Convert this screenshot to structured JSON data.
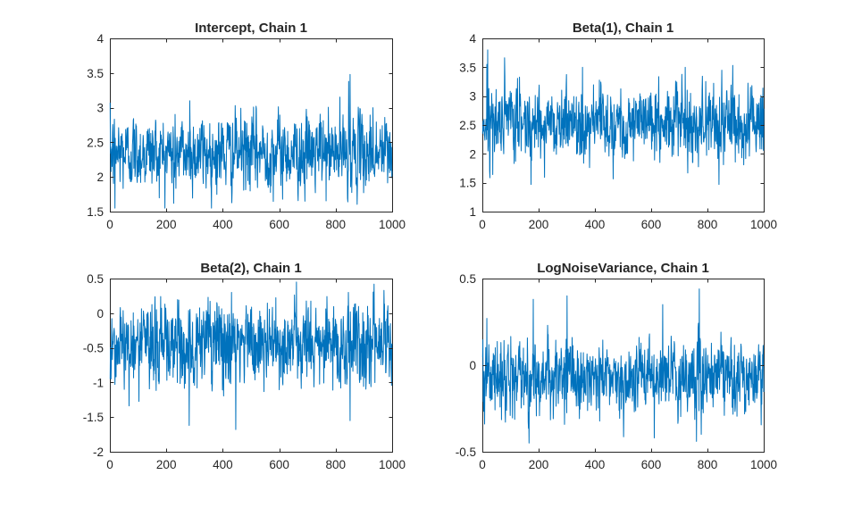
{
  "chart_data": [
    {
      "type": "line",
      "title": "Intercept, Chain 1",
      "xlabel": "",
      "ylabel": "",
      "xlim": [
        0,
        1000
      ],
      "ylim": [
        1.5,
        4
      ],
      "x_ticks": [
        "0",
        "200",
        "400",
        "600",
        "800",
        "1000"
      ],
      "y_ticks": [
        "1.5",
        "2",
        "2.5",
        "3",
        "3.5",
        "4"
      ],
      "color": "#0072bd",
      "trace": {
        "n": 1000,
        "center": 2.35,
        "spread": 0.26,
        "min": 1.55,
        "max": 3.48,
        "spikes": [
          [
            850,
            3.48
          ],
          [
            17,
            1.55
          ],
          [
            282,
            3.1
          ],
          [
            845,
            3.38
          ],
          [
            931,
            3.0
          ],
          [
            690,
            1.65
          ],
          [
            225,
            1.62
          ]
        ]
      }
    },
    {
      "type": "line",
      "title": "Beta(1), Chain 1",
      "xlabel": "",
      "ylabel": "",
      "xlim": [
        0,
        1000
      ],
      "ylim": [
        1,
        4
      ],
      "x_ticks": [
        "0",
        "200",
        "400",
        "600",
        "800",
        "1000"
      ],
      "y_ticks": [
        "1",
        "1.5",
        "2",
        "2.5",
        "3",
        "3.5",
        "4"
      ],
      "color": "#0072bd",
      "trace": {
        "n": 1000,
        "center": 2.55,
        "spread": 0.3,
        "min": 1.47,
        "max": 3.8,
        "spikes": [
          [
            18,
            3.8
          ],
          [
            15,
            3.55
          ],
          [
            25,
            1.7
          ],
          [
            840,
            1.47
          ],
          [
            720,
            3.5
          ],
          [
            355,
            3.5
          ],
          [
            850,
            3.45
          ],
          [
            630,
            1.85
          ]
        ]
      }
    },
    {
      "type": "line",
      "title": "Beta(2), Chain 1",
      "xlabel": "",
      "ylabel": "",
      "xlim": [
        0,
        1000
      ],
      "ylim": [
        -2,
        0.5
      ],
      "x_ticks": [
        "0",
        "200",
        "400",
        "600",
        "800",
        "1000"
      ],
      "y_ticks": [
        "-2",
        "-1.5",
        "-1",
        "-0.5",
        "0",
        "0.5"
      ],
      "color": "#0072bd",
      "trace": {
        "n": 1000,
        "center": -0.45,
        "spread": 0.3,
        "min": -1.68,
        "max": 0.45,
        "spikes": [
          [
            445,
            -1.68
          ],
          [
            280,
            -1.62
          ],
          [
            660,
            0.45
          ],
          [
            935,
            0.42
          ],
          [
            850,
            -1.55
          ],
          [
            430,
            0.3
          ],
          [
            50,
            -1.1
          ]
        ]
      }
    },
    {
      "type": "line",
      "title": "LogNoiseVariance, Chain 1",
      "xlabel": "",
      "ylabel": "",
      "xlim": [
        0,
        1000
      ],
      "ylim": [
        -0.5,
        0.5
      ],
      "x_ticks": [
        "0",
        "200",
        "400",
        "600",
        "800",
        "1000"
      ],
      "y_ticks": [
        "-0.5",
        "0",
        "0.5"
      ],
      "color": "#0072bd",
      "trace": {
        "n": 1000,
        "center": -0.07,
        "spread": 0.1,
        "min": -0.45,
        "max": 0.44,
        "spikes": [
          [
            770,
            0.44
          ],
          [
            300,
            0.4
          ],
          [
            180,
            0.38
          ],
          [
            640,
            0.35
          ],
          [
            15,
            0.27
          ],
          [
            760,
            -0.44
          ],
          [
            165,
            -0.45
          ],
          [
            610,
            -0.42
          ]
        ]
      }
    }
  ]
}
